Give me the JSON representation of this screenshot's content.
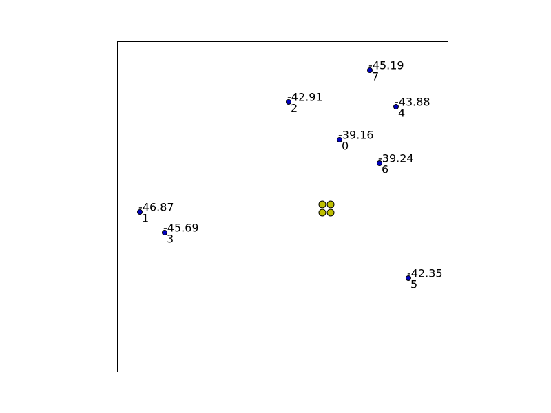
{
  "points": [
    {
      "value": -39.16,
      "index": 0
    },
    {
      "value": -46.87,
      "index": 1
    },
    {
      "value": -42.91,
      "index": 2
    },
    {
      "value": -45.69,
      "index": 3
    },
    {
      "value": -43.88,
      "index": 4
    },
    {
      "value": -42.35,
      "index": 5
    },
    {
      "value": -39.24,
      "index": 6
    },
    {
      "value": -45.19,
      "index": 7
    }
  ]
}
